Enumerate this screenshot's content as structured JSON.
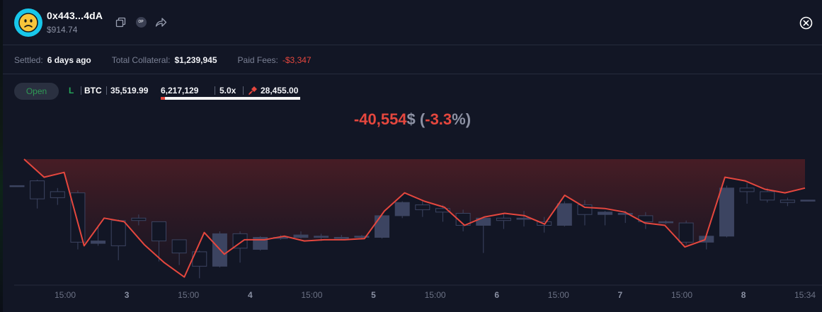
{
  "header": {
    "address": "0x443...4dA",
    "balance": "$914.74",
    "op_badge": "OP",
    "icons": [
      "copy-icon",
      "op-badge-icon",
      "share-icon",
      "close-icon"
    ]
  },
  "stats": {
    "settled_label": "Settled:",
    "settled_value": "6 days ago",
    "collateral_label": "Total Collateral:",
    "collateral_value": "$1,239,945",
    "fees_label": "Paid Fees:",
    "fees_value": "-$3,347"
  },
  "position": {
    "status_button": "Open",
    "side": "L",
    "symbol": "BTC",
    "entry_price": "35,519.99",
    "size": "6,217,129",
    "leverage": "5.0x",
    "liquidation_price": "28,455.00",
    "liquidation_progress": 0.03
  },
  "pnl": {
    "amount": "-40,554",
    "currency": "$",
    "percent_open": "(",
    "percent": "-3.3",
    "percent_close": "%)"
  },
  "colors": {
    "accent_red": "#e5473e",
    "open_green": "#2f9a55",
    "candle": "#3c4461",
    "background": "#121625"
  },
  "chart_data": {
    "type": "line",
    "x_tick_labels": [
      "15:00",
      "3",
      "15:00",
      "4",
      "15:00",
      "5",
      "15:00",
      "6",
      "15:00",
      "7",
      "15:00",
      "8",
      "15:34"
    ],
    "x_tick_bold": [
      false,
      true,
      false,
      true,
      false,
      true,
      false,
      true,
      false,
      true,
      false,
      true,
      false
    ],
    "ylim": [
      0,
      100
    ],
    "pnl_line": [
      100,
      85,
      89,
      28,
      51,
      48,
      29,
      14,
      2,
      39,
      21,
      33,
      33,
      36,
      32,
      33,
      33,
      34,
      57,
      72,
      65,
      60,
      45,
      52,
      55,
      53,
      46,
      70,
      60,
      59,
      56,
      47,
      45,
      27,
      33,
      85,
      82,
      75,
      72,
      76
    ],
    "candles": [
      {
        "o": 78,
        "c": 78,
        "h": 78,
        "l": 78
      },
      {
        "o": 82,
        "c": 67,
        "h": 83,
        "l": 59
      },
      {
        "o": 73,
        "c": 68,
        "h": 76,
        "l": 62
      },
      {
        "o": 72,
        "c": 31,
        "h": 74,
        "l": 25
      },
      {
        "o": 30,
        "c": 32,
        "h": 45,
        "l": 28
      },
      {
        "o": 49,
        "c": 28,
        "h": 50,
        "l": 16
      },
      {
        "o": 51,
        "c": 49,
        "h": 54,
        "l": 45
      },
      {
        "o": 48,
        "c": 32,
        "h": 48,
        "l": 15
      },
      {
        "o": 33,
        "c": 22,
        "h": 33,
        "l": 12
      },
      {
        "o": 23,
        "c": 11,
        "h": 24,
        "l": 1
      },
      {
        "o": 11,
        "c": 38,
        "h": 40,
        "l": 10
      },
      {
        "o": 38,
        "c": 26,
        "h": 40,
        "l": 14
      },
      {
        "o": 25,
        "c": 35,
        "h": 36,
        "l": 24
      },
      {
        "o": 35,
        "c": 35,
        "h": 37,
        "l": 33
      },
      {
        "o": 35,
        "c": 37,
        "h": 40,
        "l": 34
      },
      {
        "o": 35,
        "c": 36,
        "h": 38,
        "l": 32
      },
      {
        "o": 35,
        "c": 35,
        "h": 37,
        "l": 33
      },
      {
        "o": 35,
        "c": 36,
        "h": 37,
        "l": 34
      },
      {
        "o": 35,
        "c": 53,
        "h": 55,
        "l": 34
      },
      {
        "o": 53,
        "c": 64,
        "h": 65,
        "l": 51
      },
      {
        "o": 62,
        "c": 58,
        "h": 66,
        "l": 52
      },
      {
        "o": 59,
        "c": 56,
        "h": 62,
        "l": 48
      },
      {
        "o": 55,
        "c": 45,
        "h": 58,
        "l": 40
      },
      {
        "o": 45,
        "c": 51,
        "h": 52,
        "l": 22
      },
      {
        "o": 51,
        "c": 49,
        "h": 55,
        "l": 42
      },
      {
        "o": 50,
        "c": 51,
        "h": 57,
        "l": 44
      },
      {
        "o": 48,
        "c": 45,
        "h": 52,
        "l": 39
      },
      {
        "o": 45,
        "c": 63,
        "h": 65,
        "l": 44
      },
      {
        "o": 62,
        "c": 54,
        "h": 66,
        "l": 45
      },
      {
        "o": 54,
        "c": 56,
        "h": 57,
        "l": 45
      },
      {
        "o": 54,
        "c": 55,
        "h": 57,
        "l": 47
      },
      {
        "o": 53,
        "c": 48,
        "h": 56,
        "l": 42
      },
      {
        "o": 48,
        "c": 48,
        "h": 49,
        "l": 46
      },
      {
        "o": 47,
        "c": 31,
        "h": 49,
        "l": 29
      },
      {
        "o": 31,
        "c": 36,
        "h": 37,
        "l": 25
      },
      {
        "o": 36,
        "c": 76,
        "h": 78,
        "l": 35
      },
      {
        "o": 76,
        "c": 73,
        "h": 80,
        "l": 63
      },
      {
        "o": 73,
        "c": 66,
        "h": 76,
        "l": 64
      },
      {
        "o": 66,
        "c": 64,
        "h": 68,
        "l": 61
      },
      {
        "o": 66,
        "c": 66,
        "h": 66,
        "l": 66
      }
    ]
  }
}
